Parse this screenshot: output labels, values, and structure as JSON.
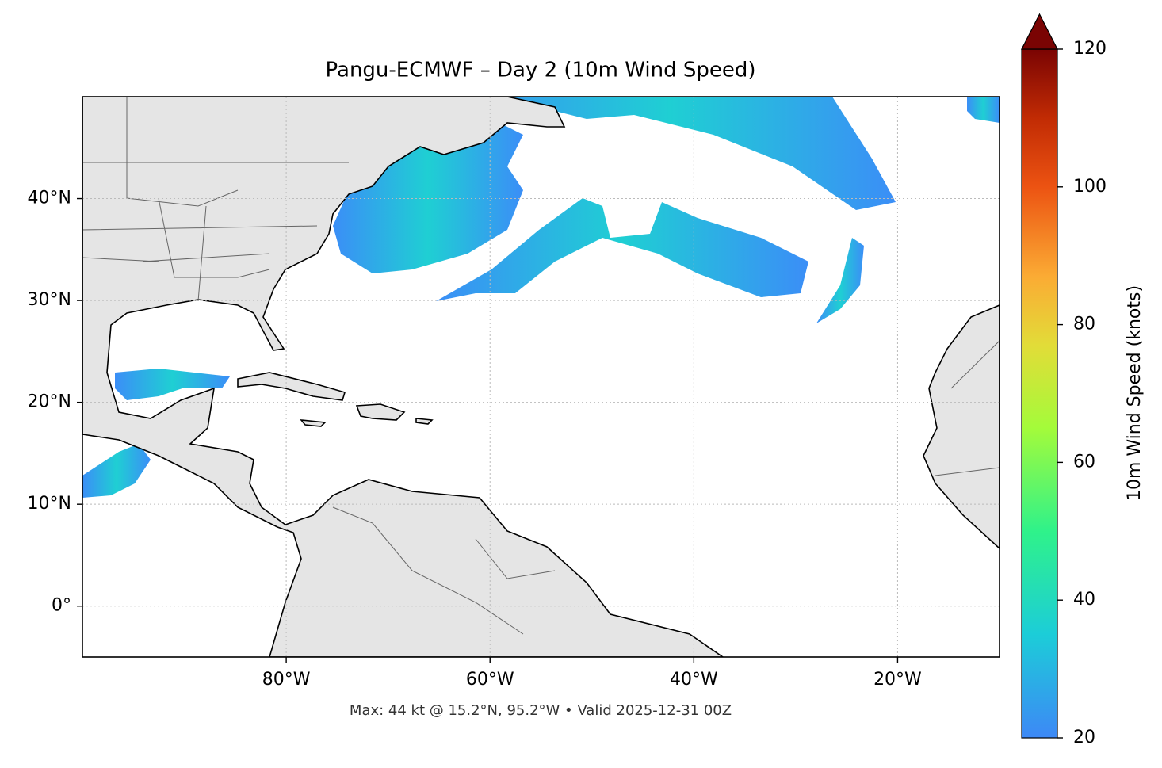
{
  "map": {
    "title": "Pangu-ECMWF – Day 2 (10m Wind Speed)",
    "lonlim": [
      -100,
      -10
    ],
    "latlim": [
      -5,
      50
    ],
    "xticks": [
      {
        "value": -80,
        "label": "80°W"
      },
      {
        "value": -60,
        "label": "60°W"
      },
      {
        "value": -40,
        "label": "40°W"
      },
      {
        "value": -20,
        "label": "20°W"
      }
    ],
    "yticks": [
      {
        "value": 0,
        "label": "0°"
      },
      {
        "value": 10,
        "label": "10°N"
      },
      {
        "value": 20,
        "label": "20°N"
      },
      {
        "value": 30,
        "label": "30°N"
      },
      {
        "value": 40,
        "label": "40°N"
      }
    ],
    "footer": "Max: 44 kt @ 15.2°N, 95.2°W • Valid 2025-12-31 00Z",
    "colorbar": {
      "label": "10m Wind Speed (knots)",
      "lim": [
        20,
        120
      ],
      "ticks": [
        20,
        40,
        60,
        80,
        100,
        120
      ]
    }
  }
}
